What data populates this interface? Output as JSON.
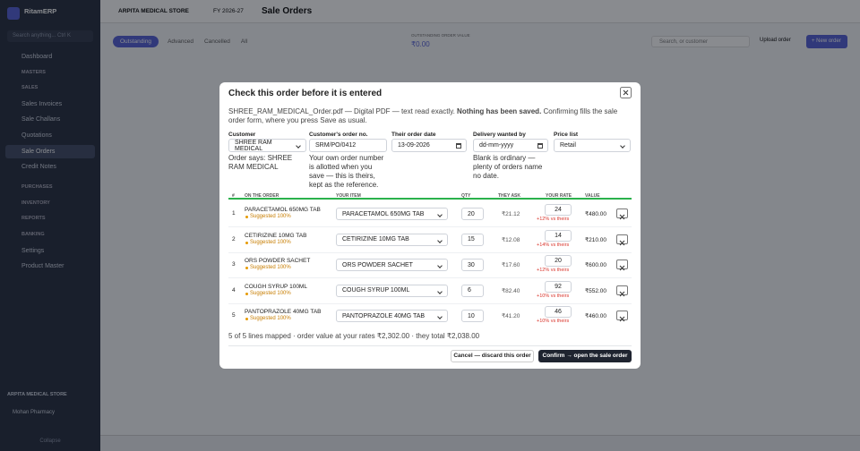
{
  "sidebar": {
    "brand": "RitamERP",
    "search": "Search anything... Ctrl K",
    "items": [
      "Dashboard",
      "MASTERS",
      "SALES",
      "Sales Invoices",
      "Sale Challans",
      "Quotations",
      "Sale Orders",
      "Credit Notes",
      "PURCHASES",
      "INVENTORY",
      "REPORTS",
      "BANKING",
      "Settings",
      "Product Master"
    ],
    "active": 6,
    "company": "ARPITA MEDICAL STORE",
    "user": "Mohan Pharmacy",
    "collapse": "Collapse"
  },
  "header": {
    "company": "ARPITA MEDICAL STORE",
    "year": "FY 2026-27",
    "title": "Sale Orders"
  },
  "toolbar": {
    "tabs": [
      "Outstanding",
      "Advanced",
      "Cancelled",
      "All"
    ],
    "stat_label": "OUTSTANDING ORDER VALUE",
    "stat_value": "₹0.00",
    "search": "Search, or customer",
    "upload": "Upload order",
    "new": "+ New order"
  },
  "modal": {
    "title": "Check this order before it is entered",
    "intro": "SHREE_RAM_MEDICAL_Order.pdf — Digital PDF — text read exactly. ",
    "intro_bold": "Nothing has been saved.",
    "intro_rest": " Confirming fills the sale order form, where you press Save as usual.",
    "fields": [
      {
        "label": "Customer",
        "value": "SHREE RAM MEDICAL",
        "note": "Order says: SHREE RAM MEDICAL"
      },
      {
        "label": "Customer's order no.",
        "value": "SRM/PO/0412",
        "note": "Your own order number is allotted when you save — this is theirs, kept as the reference."
      },
      {
        "label": "Their order date",
        "value": "13-09-2026"
      },
      {
        "label": "Delivery wanted by",
        "value": "dd-mm-yyyy",
        "note": "Blank is ordinary — plenty of orders name no date."
      },
      {
        "label": "Price list",
        "value": "Retail"
      }
    ],
    "columns": [
      "#",
      "ON THE ORDER",
      "YOUR ITEM",
      "QTY",
      "THEY ASK",
      "YOUR RATE",
      "VALUE"
    ],
    "rows": [
      [
        "1",
        "PARACETAMOL 650MG TAB",
        "Suggested 100%",
        "PARACETAMOL 650MG TAB",
        "20",
        "₹21.12",
        "24",
        "+12% vs theirs",
        "₹480.00"
      ],
      [
        "2",
        "CETIRIZINE 10MG TAB",
        "Suggested 100%",
        "CETIRIZINE 10MG TAB",
        "15",
        "₹12.08",
        "14",
        "+14% vs theirs",
        "₹210.00"
      ],
      [
        "3",
        "ORS POWDER SACHET",
        "Suggested 100%",
        "ORS POWDER SACHET",
        "30",
        "₹17.60",
        "20",
        "+12% vs theirs",
        "₹600.00"
      ],
      [
        "4",
        "COUGH SYRUP 100ML",
        "Suggested 100%",
        "COUGH SYRUP 100ML",
        "6",
        "₹82.40",
        "92",
        "+10% vs theirs",
        "₹552.00"
      ],
      [
        "5",
        "PANTOPRAZOLE 40MG TAB",
        "Suggested 100%",
        "PANTOPRAZOLE 40MG TAB",
        "10",
        "₹41.20",
        "46",
        "+10% vs theirs",
        "₹460.00"
      ]
    ],
    "summary": "5 of 5 lines mapped · order value at your rates ₹2,302.00 · they total ₹2,038.00",
    "cancel": "Cancel — discard this order",
    "confirm": "Confirm → open the sale order"
  }
}
